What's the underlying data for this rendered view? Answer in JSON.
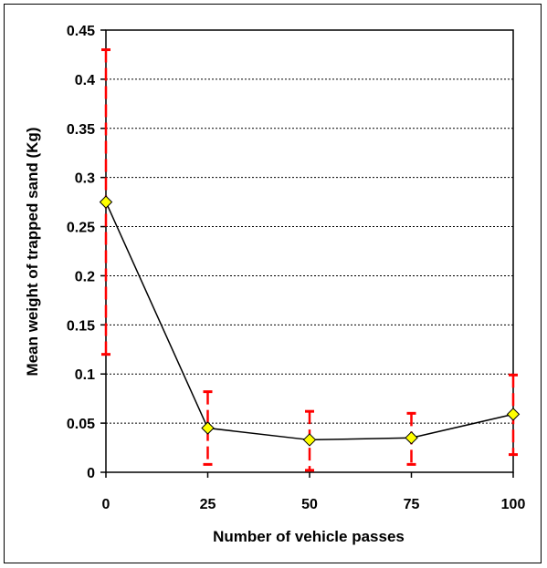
{
  "chart_data": {
    "type": "line",
    "title": "",
    "xlabel": "Number of vehicle passes",
    "ylabel": "Mean weight of trapped sand (Kg)",
    "x": [
      0,
      25,
      50,
      75,
      100
    ],
    "xlim": [
      0,
      100
    ],
    "ylim": [
      0,
      0.45
    ],
    "x_ticks": [
      "0",
      "25",
      "50",
      "75",
      "100"
    ],
    "y_ticks": [
      "0",
      "0.05",
      "0.1",
      "0.15",
      "0.2",
      "0.25",
      "0.3",
      "0.35",
      "0.4",
      "0.45"
    ],
    "grid": "horizontal dashed",
    "legend": "none",
    "series": [
      {
        "values": [
          0.275,
          0.045,
          0.033,
          0.035,
          0.059
        ],
        "error_low": [
          0.12,
          0.008,
          0.002,
          0.008,
          0.018
        ],
        "error_high": [
          0.43,
          0.082,
          0.062,
          0.06,
          0.099
        ],
        "line_color": "#000000",
        "marker": "diamond",
        "marker_color": "#FFFF00",
        "error_color": "#FF0000"
      }
    ]
  }
}
